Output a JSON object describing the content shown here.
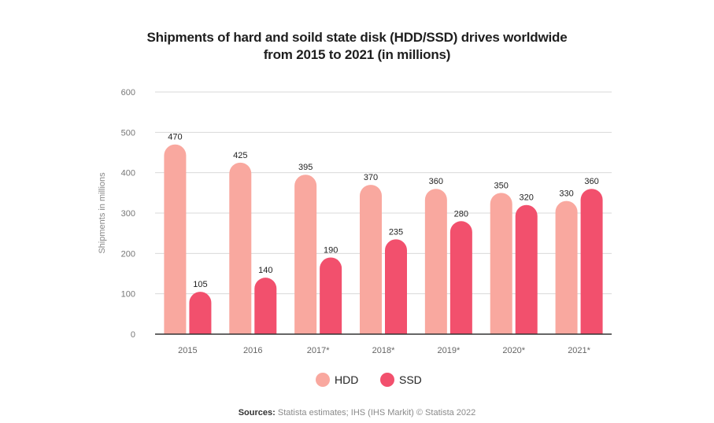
{
  "title": {
    "line1": "Shipments of hard and soild state disk (HDD/SSD) drives worldwide",
    "line2": "from 2015 to 2021 (in millions)"
  },
  "sources": {
    "label": "Sources:",
    "text": "Statista estimates; IHS (IHS Markit) © Statista 2022"
  },
  "chart_data": {
    "type": "bar",
    "categories": [
      "2015",
      "2016",
      "2017*",
      "2018*",
      "2019*",
      "2020*",
      "2021*"
    ],
    "series": [
      {
        "name": "HDD",
        "color": "#f9a89f",
        "values": [
          470,
          425,
          395,
          370,
          360,
          350,
          330
        ]
      },
      {
        "name": "SSD",
        "color": "#f2506d",
        "values": [
          105,
          140,
          190,
          235,
          280,
          320,
          360
        ]
      }
    ],
    "ylabel": "Shipments in millions",
    "xlabel": "",
    "ylim": [
      0,
      600
    ],
    "yticks": [
      0,
      100,
      200,
      300,
      400,
      500,
      600
    ],
    "grid": true,
    "legend": "bottom-center",
    "data_labels": true
  }
}
